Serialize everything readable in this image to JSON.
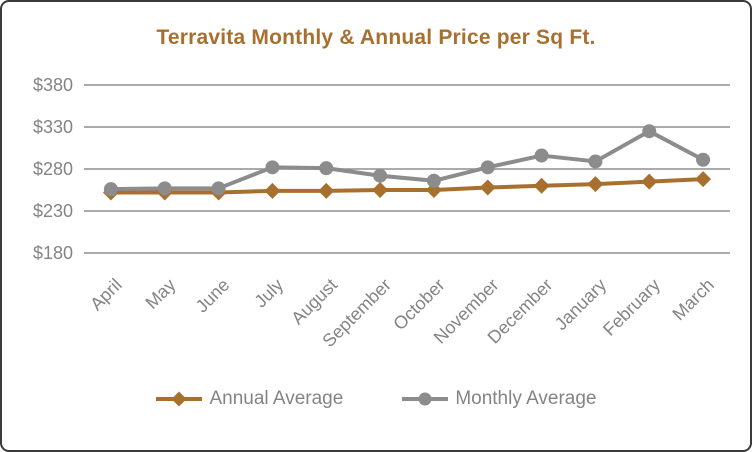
{
  "window": {
    "background": "#ffffff",
    "border_color": "#3a3a3a"
  },
  "chart_data": {
    "type": "line",
    "title": "Terravita Monthly & Annual Price per Sq Ft.",
    "title_color": "#a8702f",
    "categories": [
      "April",
      "May",
      "June",
      "July",
      "August",
      "September",
      "October",
      "November",
      "December",
      "January",
      "February",
      "March"
    ],
    "series": [
      {
        "name": "Annual Average",
        "color": "#a8702f",
        "marker": "diamond",
        "values": [
          252,
          252,
          252,
          254,
          254,
          255,
          255,
          258,
          260,
          262,
          265,
          268
        ]
      },
      {
        "name": "Monthly Average",
        "color": "#8c8c8c",
        "marker": "circle",
        "values": [
          256,
          257,
          257,
          282,
          281,
          272,
          266,
          282,
          296,
          289,
          325,
          291
        ]
      }
    ],
    "y_axis": {
      "tick_labels": [
        "$380",
        "$330",
        "$280",
        "$230",
        "$180"
      ],
      "tick_values": [
        380,
        330,
        280,
        230,
        180
      ],
      "min": 180,
      "max": 380,
      "prefix": "$",
      "text_color": "#848484"
    },
    "x_axis": {
      "label_rotation_deg": 45,
      "text_color": "#848484"
    },
    "grid": true,
    "grid_color": "#8f8f8f",
    "legend_position": "bottom",
    "ylabel": "",
    "xlabel": ""
  }
}
